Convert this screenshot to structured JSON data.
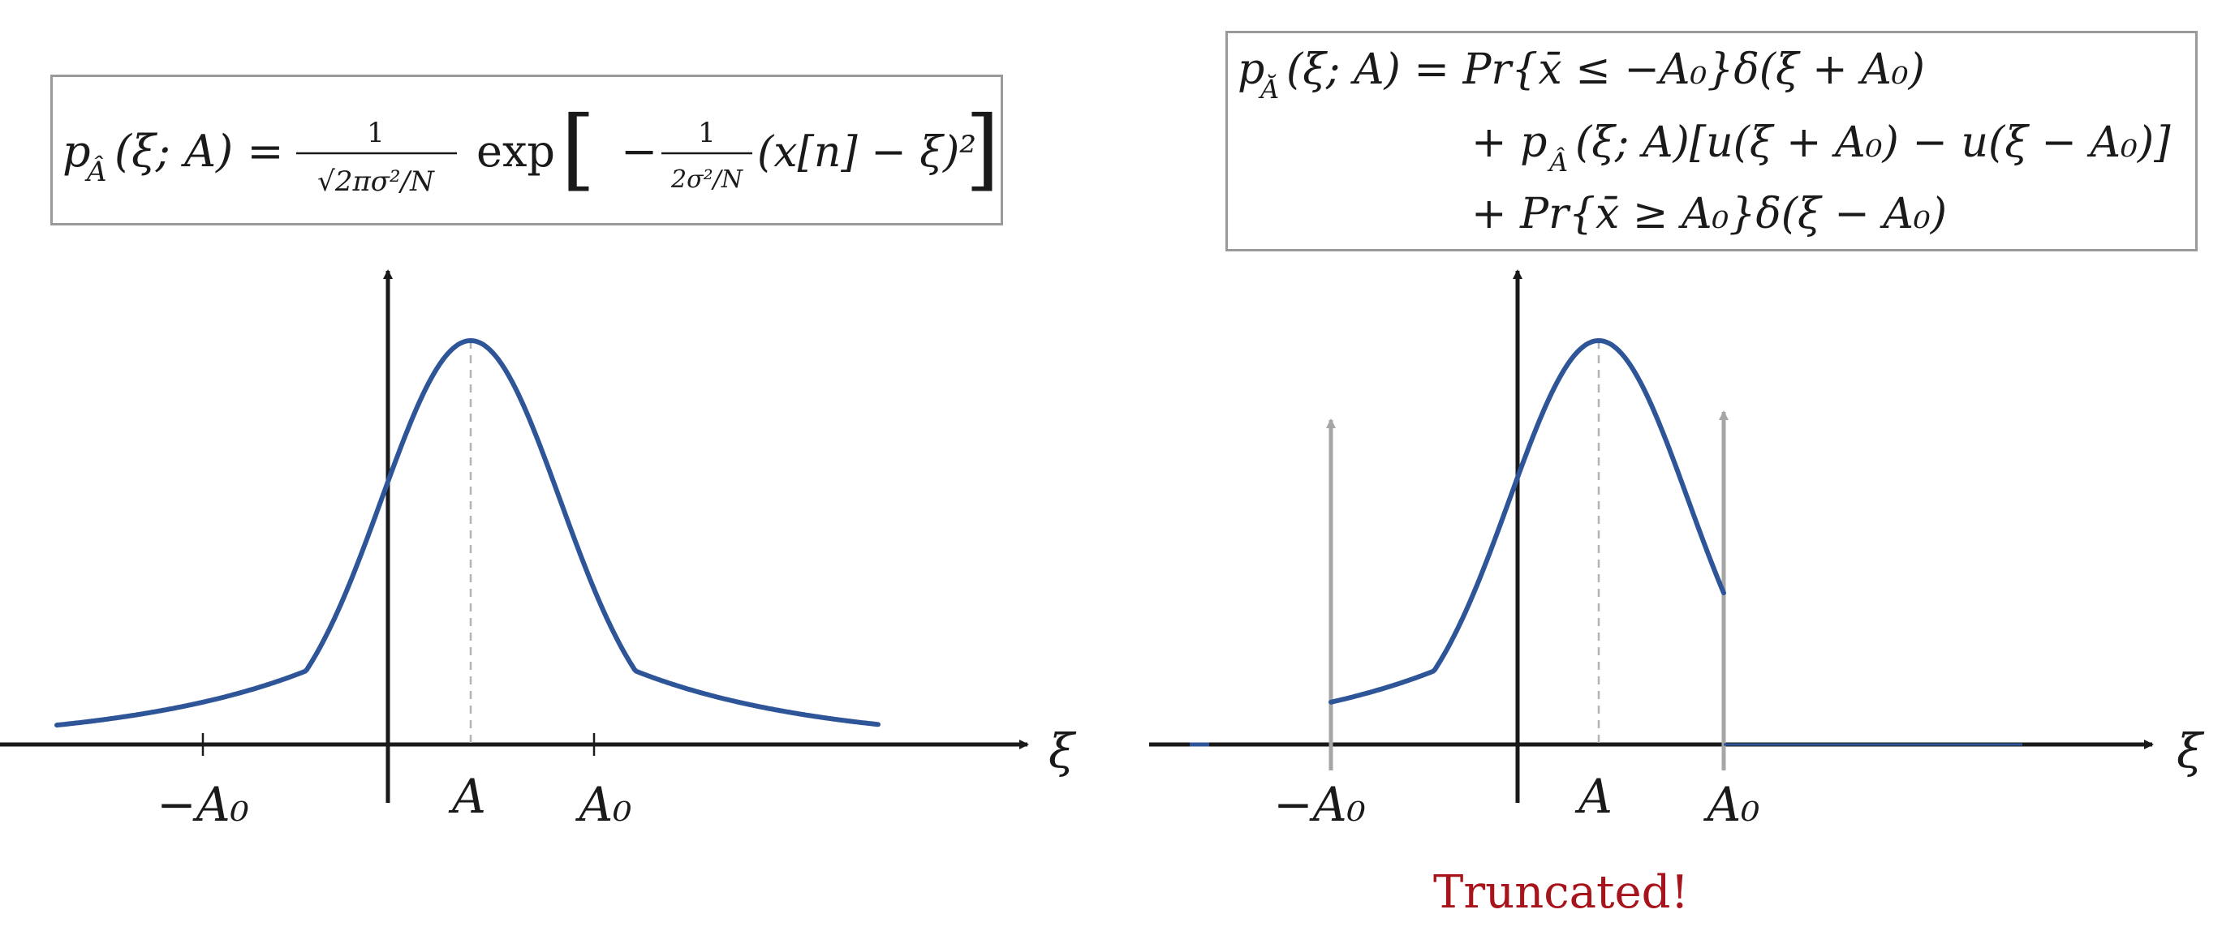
{
  "left_panel": {
    "formula": {
      "lhs": "p",
      "lhs_sub": "Â",
      "args": "(ξ; A) =",
      "frac1_num": "1",
      "frac1_den": "√2πσ²/N",
      "exp": "exp",
      "bracket_open": "[",
      "minus": "−",
      "frac2_num": "1",
      "frac2_den": "2σ²/N",
      "tail": "(x[n] − ξ)²",
      "bracket_close": "]"
    },
    "tick_labels": {
      "neg_a0": "−A₀",
      "a": "A",
      "a0": "A₀"
    },
    "axis_label": "ξ"
  },
  "right_panel": {
    "formula": {
      "lhs": "p",
      "lhs_sub": "Ă",
      "line1": "(ξ; A) = Pr{x̄ ≤ −A₀}δ(ξ + A₀)",
      "line2": "+ p",
      "line2_sub": "Â",
      "line2_rest": "(ξ; A)[u(ξ + A₀) − u(ξ − A₀)]",
      "line3": "+ Pr{x̄ ≥ A₀}δ(ξ − A₀)"
    },
    "tick_labels": {
      "neg_a0": "−A₀",
      "a": "A",
      "a0": "A₀"
    },
    "axis_label": "ξ",
    "caption": "Truncated!"
  },
  "colors": {
    "curve": "#2e5597",
    "axis": "#1a1a1a",
    "impulse": "#a6a6a6",
    "dashed": "#b4b4b4",
    "caption": "#a8141b"
  }
}
